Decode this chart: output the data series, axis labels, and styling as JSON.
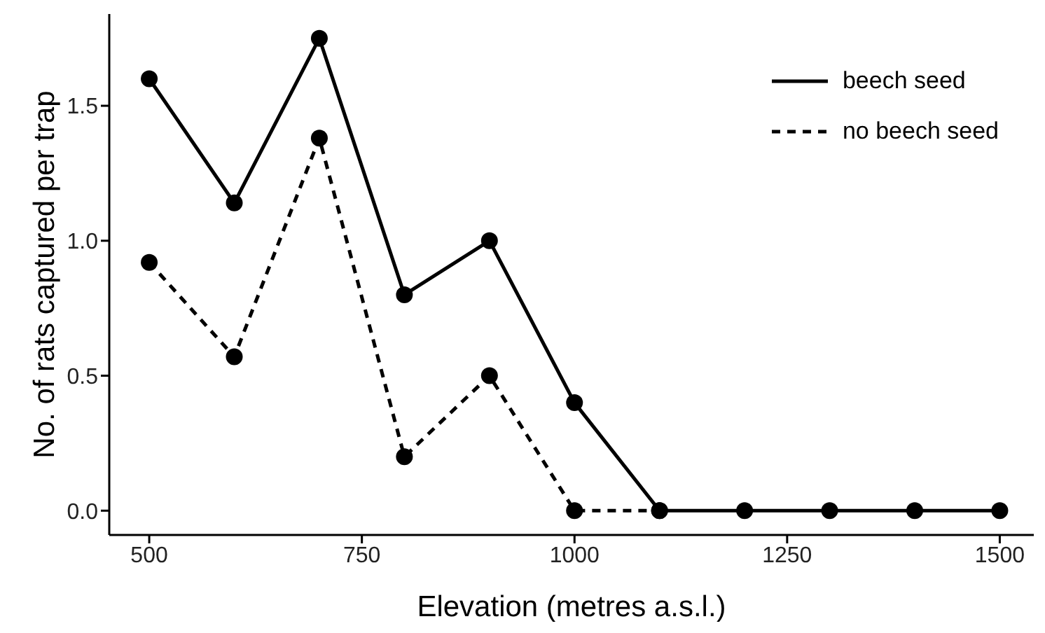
{
  "chart_data": {
    "type": "line",
    "xlabel": "Elevation (metres a.s.l.)",
    "ylabel": "No. of rats captured per trap",
    "x": [
      500,
      600,
      700,
      800,
      900,
      1000,
      1100,
      1200,
      1300,
      1400,
      1500
    ],
    "series": [
      {
        "name": "beech seed",
        "color": "#000000",
        "line_style": "solid",
        "values": [
          1.6,
          1.14,
          1.75,
          0.8,
          1.0,
          0.4,
          0,
          0,
          0,
          0,
          0
        ]
      },
      {
        "name": "no beech seed",
        "color": "#000000",
        "line_style": "dashed",
        "values": [
          0.92,
          0.57,
          1.38,
          0.2,
          0.5,
          0,
          0,
          null,
          null,
          null,
          null
        ]
      }
    ],
    "xlim": [
      453,
      1540
    ],
    "xticks": [
      500,
      750,
      1000,
      1250,
      1500
    ],
    "ylim": [
      -0.09,
      1.84
    ],
    "yticks": [
      {
        "value": 0,
        "label": "0.0"
      },
      {
        "value": 0.5,
        "label": "0.5"
      },
      {
        "value": 1,
        "label": "1.0"
      },
      {
        "value": 1.5,
        "label": "1.5"
      }
    ],
    "grid": false,
    "legend": "top right",
    "marker": "circle"
  }
}
